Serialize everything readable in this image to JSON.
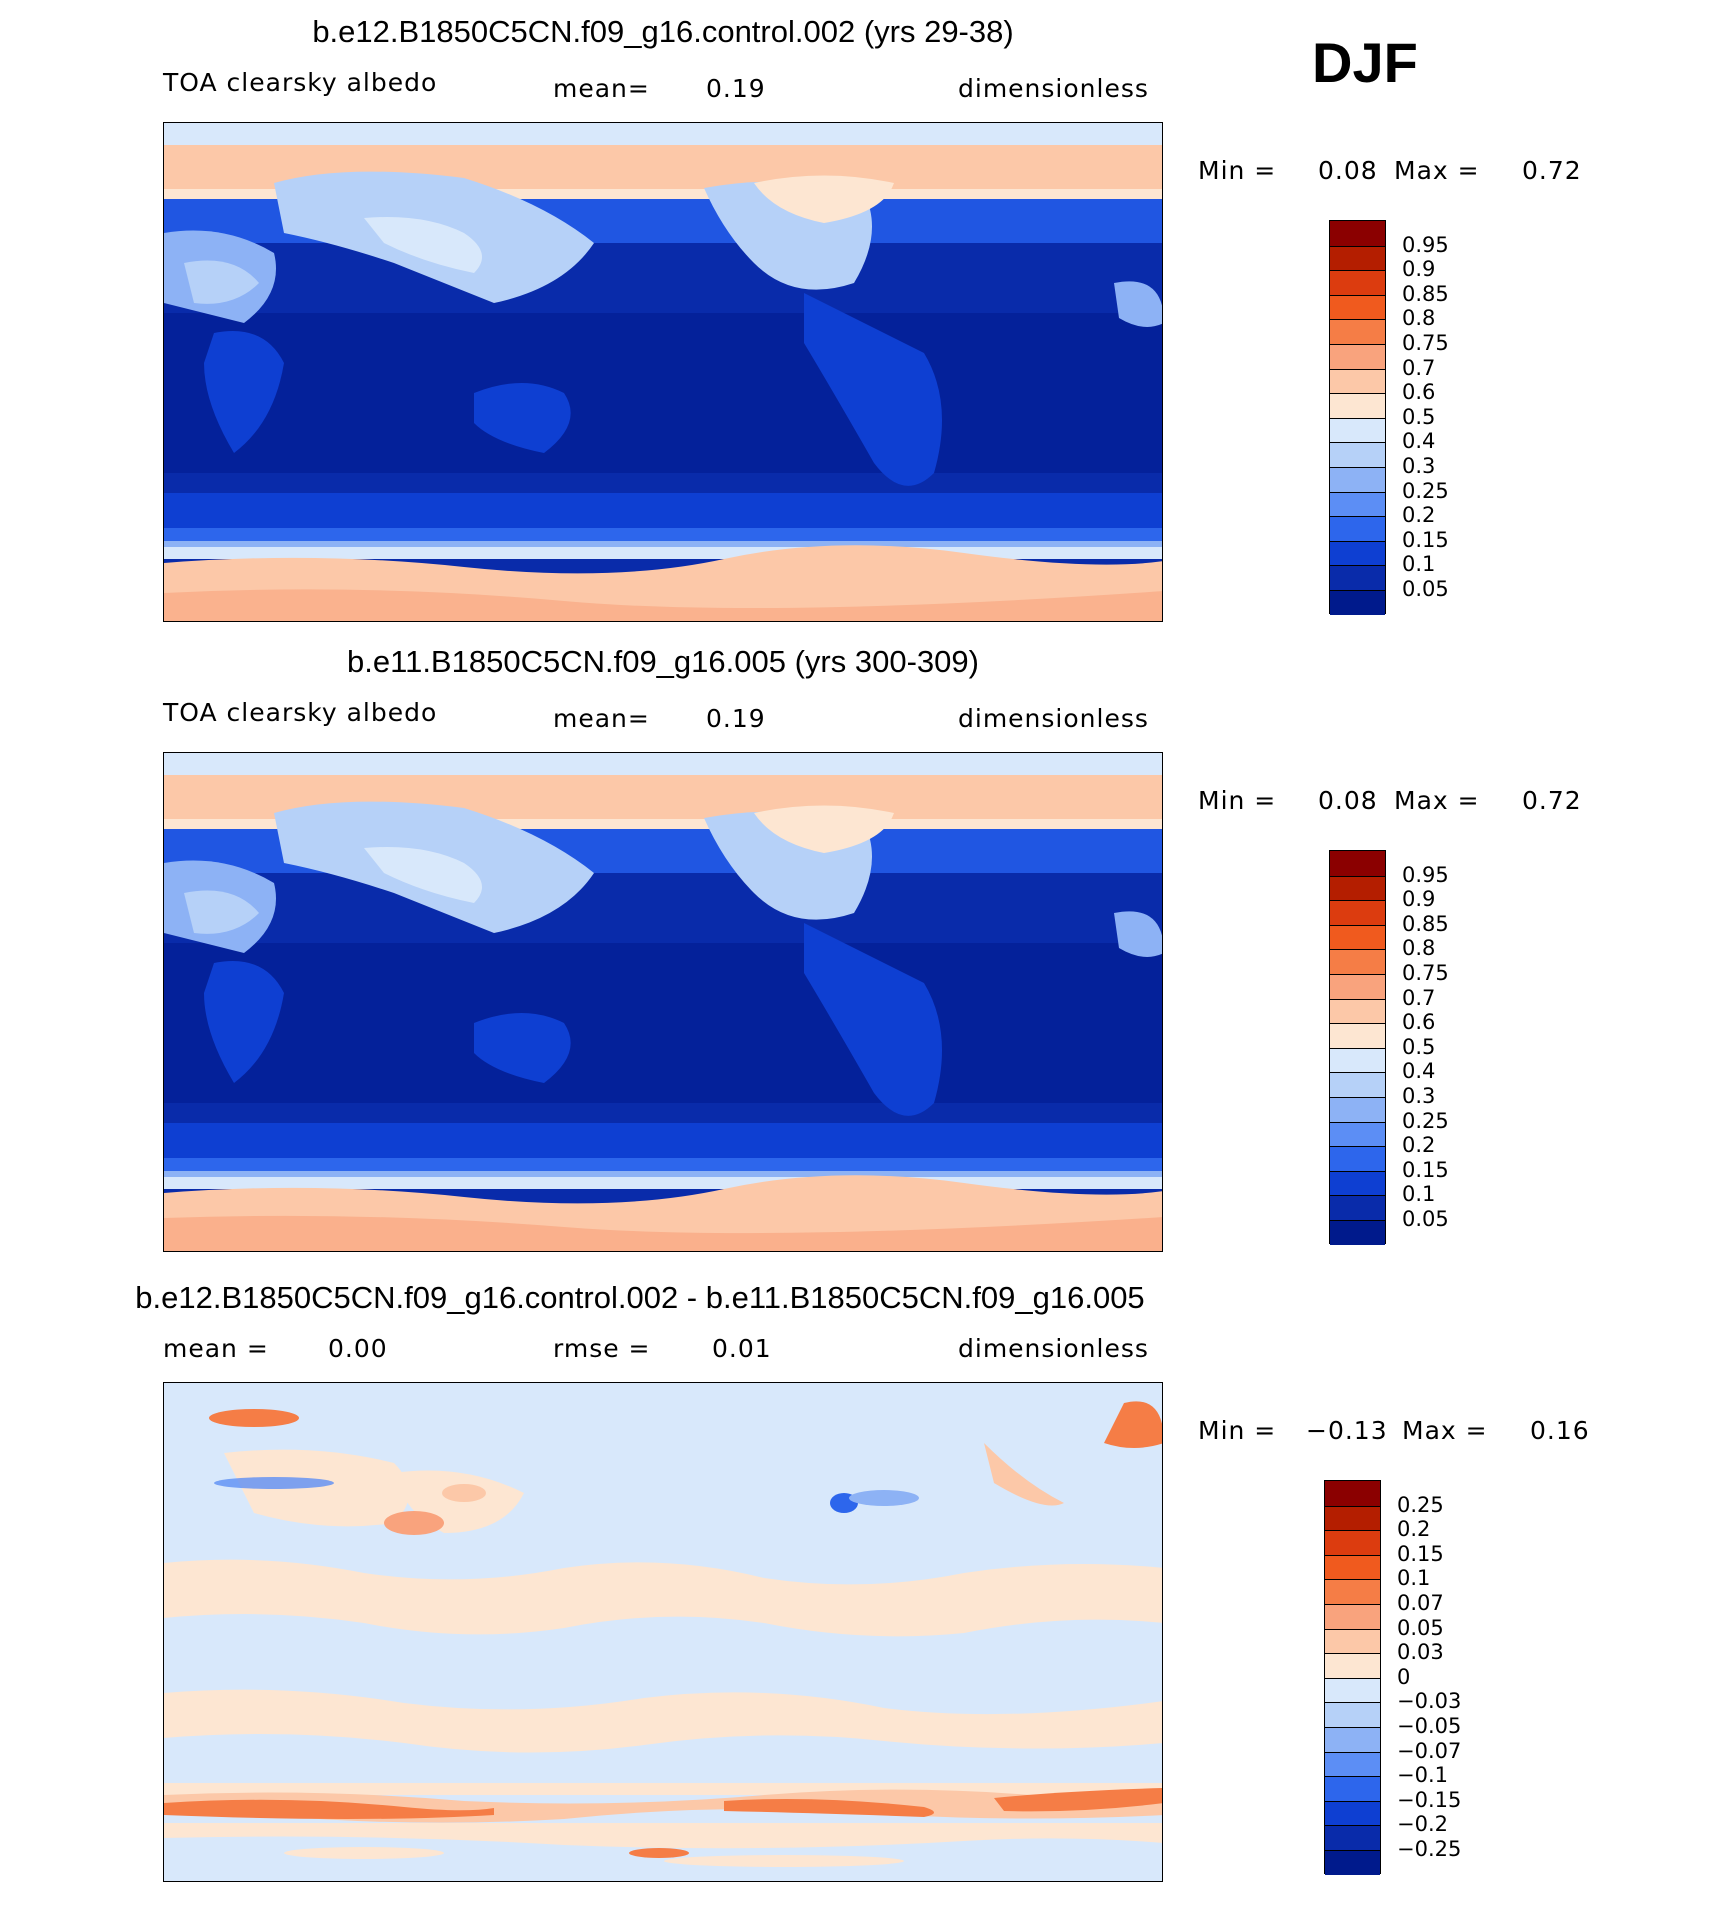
{
  "season": "DJF",
  "panels": [
    {
      "title": "b.e12.B1850C5CN.f09_g16.control.002 (yrs 29-38)",
      "left_label": "TOA clearsky albedo",
      "stat1_label": "mean=",
      "stat1_value": "0.19",
      "units": "dimensionless",
      "min_label": "Min =",
      "min_value": "0.08",
      "max_label": "Max =",
      "max_value": "0.72",
      "colorbar_levels": [
        "0.95",
        "0.9",
        "0.85",
        "0.8",
        "0.75",
        "0.7",
        "0.6",
        "0.5",
        "0.4",
        "0.3",
        "0.25",
        "0.2",
        "0.15",
        "0.1",
        "0.05"
      ]
    },
    {
      "title": "b.e11.B1850C5CN.f09_g16.005 (yrs 300-309)",
      "left_label": "TOA clearsky albedo",
      "stat1_label": "mean=",
      "stat1_value": "0.19",
      "units": "dimensionless",
      "min_label": "Min =",
      "min_value": "0.08",
      "max_label": "Max =",
      "max_value": "0.72",
      "colorbar_levels": [
        "0.95",
        "0.9",
        "0.85",
        "0.8",
        "0.75",
        "0.7",
        "0.6",
        "0.5",
        "0.4",
        "0.3",
        "0.25",
        "0.2",
        "0.15",
        "0.1",
        "0.05"
      ]
    },
    {
      "title": "b.e12.B1850C5CN.f09_g16.control.002 - b.e11.B1850C5CN.f09_g16.005",
      "stat1_label": "mean =",
      "stat1_value": "0.00",
      "stat2_label": "rmse =",
      "stat2_value": "0.01",
      "units": "dimensionless",
      "min_label": "Min =",
      "min_value": "−0.13",
      "max_label": "Max =",
      "max_value": "0.16",
      "colorbar_levels": [
        "0.25",
        "0.2",
        "0.15",
        "0.1",
        "0.07",
        "0.05",
        "0.03",
        "0",
        "−0.03",
        "−0.05",
        "−0.07",
        "−0.1",
        "−0.15",
        "−0.2",
        "−0.25"
      ]
    }
  ],
  "colors": {
    "abs_scale": [
      "#8b0000",
      "#b41e00",
      "#dc3c0f",
      "#f05a1e",
      "#f57d46",
      "#f9a37d",
      "#fcc8a8",
      "#fde6d2",
      "#d8e8fb",
      "#b6d1f8",
      "#8db2f5",
      "#5c8ef5",
      "#2d66ec",
      "#0e3fd2",
      "#092baa",
      "#001a8c"
    ],
    "diff_scale": [
      "#8b0000",
      "#b41e00",
      "#dc3c0f",
      "#f05a1e",
      "#f57d46",
      "#f9a37d",
      "#fcc8a8",
      "#fde6d2",
      "#d8e8fb",
      "#b6d1f8",
      "#8db2f5",
      "#5c8ef5",
      "#2d66ec",
      "#0e3fd2",
      "#092baa",
      "#001a8c"
    ],
    "coastline": "#000000"
  }
}
